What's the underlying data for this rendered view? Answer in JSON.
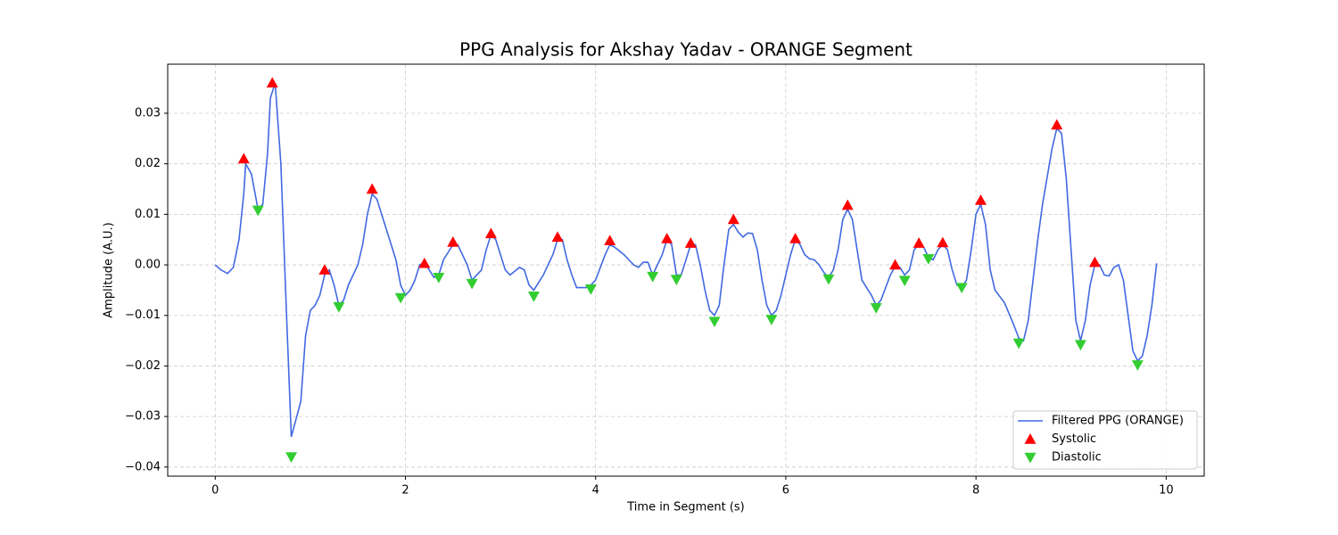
{
  "chart_data": {
    "type": "line",
    "title": "PPG Analysis for Akshay Yadav - ORANGE Segment",
    "xlabel": "Time in Segment (s)",
    "ylabel": "Amplitude (A.U.)",
    "xlim": [
      -0.5,
      10.4
    ],
    "ylim": [
      -0.0418,
      0.0397
    ],
    "xticks": [
      0,
      2,
      4,
      6,
      8,
      10
    ],
    "yticks": [
      {
        "value": -0.04,
        "label": "−0.04"
      },
      {
        "value": -0.03,
        "label": "−0.03"
      },
      {
        "value": -0.02,
        "label": "−0.02"
      },
      {
        "value": -0.01,
        "label": "−0.01"
      },
      {
        "value": 0,
        "label": "0.00"
      },
      0.01,
      0.02,
      0.03
    ],
    "grid": true,
    "legend": "lower right",
    "series": [
      {
        "name": "Filtered PPG (ORANGE)",
        "type": "line",
        "color": "#4169e1",
        "x": [
          0,
          0.06,
          0.13,
          0.19,
          0.25,
          0.3,
          0.32,
          0.38,
          0.45,
          0.5,
          0.55,
          0.58,
          0.63,
          0.69,
          0.75,
          0.8,
          0.9,
          0.95,
          1.0,
          1.05,
          1.1,
          1.15,
          1.2,
          1.25,
          1.3,
          1.35,
          1.4,
          1.5,
          1.55,
          1.6,
          1.65,
          1.7,
          1.8,
          1.9,
          1.95,
          2.0,
          2.05,
          2.1,
          2.15,
          2.2,
          2.25,
          2.3,
          2.35,
          2.4,
          2.5,
          2.55,
          2.65,
          2.7,
          2.8,
          2.85,
          2.9,
          2.95,
          3.0,
          3.05,
          3.1,
          3.2,
          3.25,
          3.3,
          3.35,
          3.45,
          3.55,
          3.6,
          3.65,
          3.7,
          3.75,
          3.8,
          3.9,
          3.95,
          4.0,
          4.1,
          4.15,
          4.2,
          4.3,
          4.35,
          4.4,
          4.45,
          4.5,
          4.55,
          4.6,
          4.7,
          4.75,
          4.8,
          4.85,
          4.9,
          5.0,
          5.05,
          5.1,
          5.15,
          5.2,
          5.25,
          5.3,
          5.35,
          5.4,
          5.45,
          5.5,
          5.55,
          5.6,
          5.65,
          5.7,
          5.75,
          5.8,
          5.85,
          5.9,
          5.95,
          6.05,
          6.1,
          6.15,
          6.2,
          6.25,
          6.3,
          6.35,
          6.4,
          6.45,
          6.5,
          6.55,
          6.6,
          6.65,
          6.7,
          6.75,
          6.8,
          6.9,
          6.95,
          7.0,
          7.1,
          7.15,
          7.2,
          7.25,
          7.3,
          7.35,
          7.4,
          7.45,
          7.5,
          7.55,
          7.6,
          7.65,
          7.7,
          7.75,
          7.8,
          7.85,
          7.9,
          7.95,
          8.0,
          8.05,
          8.1,
          8.15,
          8.2,
          8.3,
          8.4,
          8.45,
          8.5,
          8.55,
          8.6,
          8.65,
          8.7,
          8.8,
          8.85,
          8.9,
          8.95,
          9.0,
          9.05,
          9.1,
          9.15,
          9.2,
          9.25,
          9.3,
          9.35,
          9.4,
          9.45,
          9.5,
          9.55,
          9.6,
          9.65,
          9.7,
          9.75,
          9.8,
          9.85,
          9.9
        ],
        "values": [
          0,
          -0.001,
          -0.0017,
          -0.0005,
          0.005,
          0.014,
          0.02,
          0.018,
          0.011,
          0.012,
          0.022,
          0.033,
          0.036,
          0.02,
          -0.01,
          -0.034,
          -0.027,
          -0.014,
          -0.009,
          -0.008,
          -0.006,
          -0.002,
          -0.001,
          -0.004,
          -0.008,
          -0.007,
          -0.004,
          0,
          0.004,
          0.01,
          0.014,
          0.013,
          0.007,
          0.001,
          -0.004,
          -0.006,
          -0.005,
          -0.003,
          0,
          0.0005,
          -0.001,
          -0.0025,
          -0.002,
          0.001,
          0.004,
          0.004,
          0,
          -0.003,
          -0.001,
          0.003,
          0.006,
          0.005,
          0.002,
          -0.001,
          -0.002,
          -0.0005,
          -0.001,
          -0.004,
          -0.005,
          -0.002,
          0.002,
          0.005,
          0.005,
          0.001,
          -0.002,
          -0.0045,
          -0.0045,
          -0.004,
          -0.003,
          0.002,
          0.004,
          0.0035,
          0.002,
          0.001,
          0,
          -0.0005,
          0.0005,
          0.0005,
          -0.002,
          0.002,
          0.005,
          0.004,
          -0.002,
          -0.002,
          0.004,
          0.004,
          0,
          -0.005,
          -0.009,
          -0.01,
          -0.008,
          0,
          0.007,
          0.008,
          0.0065,
          0.0055,
          0.0063,
          0.0062,
          0.003,
          -0.003,
          -0.008,
          -0.01,
          -0.009,
          -0.006,
          0.002,
          0.005,
          0.004,
          0.002,
          0.0012,
          0.001,
          0,
          -0.0015,
          -0.0025,
          -0.001,
          0.003,
          0.009,
          0.011,
          0.009,
          0.003,
          -0.003,
          -0.006,
          -0.008,
          -0.007,
          -0.002,
          -0.0003,
          -0.0005,
          -0.002,
          -0.001,
          0.003,
          0.004,
          0.0035,
          0.0015,
          0.001,
          0.003,
          0.004,
          0.003,
          -0.001,
          -0.004,
          -0.0045,
          -0.003,
          0.003,
          0.01,
          0.012,
          0.008,
          -0.001,
          -0.005,
          -0.0075,
          -0.012,
          -0.0145,
          -0.015,
          -0.011,
          -0.003,
          0.005,
          0.012,
          0.023,
          0.027,
          0.026,
          0.017,
          0.003,
          -0.011,
          -0.015,
          -0.011,
          -0.004,
          0,
          0,
          -0.002,
          -0.0022,
          -0.0005,
          0,
          -0.003,
          -0.01,
          -0.017,
          -0.019,
          -0.018,
          -0.014,
          -0.008,
          0.0003
        ]
      },
      {
        "name": "Systolic",
        "type": "scatter",
        "marker": "up",
        "color": "#ff0000",
        "x": [
          0.3,
          0.6,
          1.15,
          1.65,
          2.2,
          2.5,
          2.9,
          3.6,
          4.15,
          4.75,
          5.0,
          5.45,
          6.1,
          6.65,
          7.15,
          7.4,
          7.65,
          8.05,
          8.85,
          9.25
        ],
        "values": [
          0.021,
          0.036,
          -0.001,
          0.015,
          0.0003,
          0.0045,
          0.0062,
          0.0055,
          0.0048,
          0.0052,
          0.0043,
          0.009,
          0.0052,
          0.0118,
          0,
          0.0043,
          0.0044,
          0.0128,
          0.0277,
          0.0005
        ]
      },
      {
        "name": "Diastolic",
        "type": "scatter",
        "marker": "down",
        "color": "#32cd32",
        "x": [
          0.45,
          0.8,
          1.3,
          1.95,
          2.35,
          2.7,
          3.35,
          3.95,
          4.6,
          4.85,
          5.25,
          5.85,
          6.45,
          6.95,
          7.25,
          7.5,
          7.85,
          8.45,
          9.1,
          9.7
        ],
        "values": [
          0.0108,
          -0.038,
          -0.0083,
          -0.0065,
          -0.0025,
          -0.0037,
          -0.0062,
          -0.0048,
          -0.0023,
          -0.0029,
          -0.0112,
          -0.0108,
          -0.0028,
          -0.0085,
          -0.0031,
          0.0012,
          -0.0045,
          -0.0155,
          -0.0158,
          -0.0198
        ]
      }
    ]
  }
}
